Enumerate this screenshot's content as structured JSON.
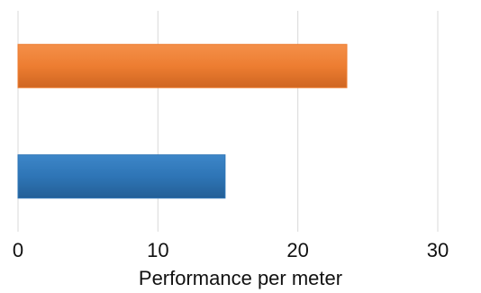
{
  "chart_data": {
    "type": "bar",
    "orientation": "horizontal",
    "categories": [
      "",
      ""
    ],
    "series": [
      {
        "values": [
          14.8,
          23.5
        ],
        "colors": [
          "#2e75b6",
          "#ed7d31"
        ]
      }
    ],
    "title": "",
    "xlabel": "Performance per meter",
    "ylabel": "",
    "xlim": [
      0,
      30
    ],
    "xticks": [
      "0",
      "10",
      "20",
      "30"
    ],
    "grid": "vertical",
    "legend": "none"
  }
}
